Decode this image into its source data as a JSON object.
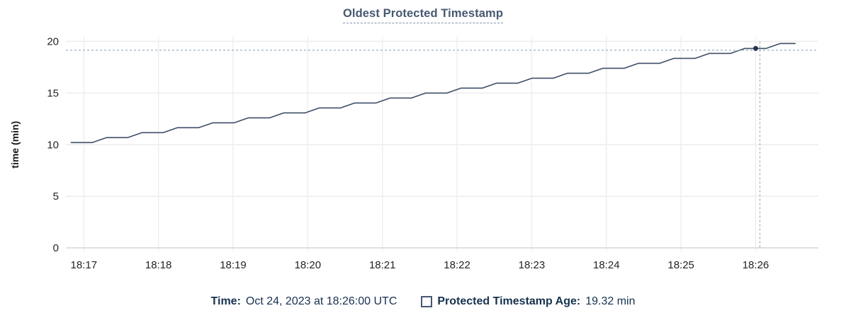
{
  "title": "Oldest Protected Timestamp",
  "colors": {
    "title": "#475872",
    "line": "#3e4e69",
    "dot": "#26344e",
    "crosshair": "#9db0c2",
    "grid": "#ededed",
    "axis": "#d6d6d6",
    "tick_label": "#242424",
    "legend_text": "#16324f"
  },
  "chart_data": {
    "type": "line",
    "line_style": "step-ramp",
    "title": "Oldest Protected Timestamp",
    "xlabel": "",
    "ylabel": "time (min)",
    "ylim": [
      0,
      20
    ],
    "y_ticks": [
      0,
      5,
      10,
      15,
      20
    ],
    "x_ticks": [
      {
        "offset_min": 0,
        "label": "18:17"
      },
      {
        "offset_min": 1,
        "label": "18:18"
      },
      {
        "offset_min": 2,
        "label": "18:19"
      },
      {
        "offset_min": 3,
        "label": "18:20"
      },
      {
        "offset_min": 4,
        "label": "18:21"
      },
      {
        "offset_min": 5,
        "label": "18:22"
      },
      {
        "offset_min": 6,
        "label": "18:23"
      },
      {
        "offset_min": 7,
        "label": "18:24"
      },
      {
        "offset_min": 8,
        "label": "18:25"
      },
      {
        "offset_min": 9,
        "label": "18:26"
      }
    ],
    "xlim_offset_min": [
      -0.24,
      9.84
    ],
    "grid": true,
    "legend_position": "bottom",
    "series": [
      {
        "name": "Protected Timestamp Age",
        "unit": "min",
        "points": [
          [
            -0.17,
            10.2
          ],
          [
            0.115,
            10.2
          ],
          [
            0.305,
            10.68
          ],
          [
            0.59,
            10.68
          ],
          [
            0.78,
            11.16
          ],
          [
            1.065,
            11.16
          ],
          [
            1.255,
            11.64
          ],
          [
            1.54,
            11.64
          ],
          [
            1.73,
            12.12
          ],
          [
            2.015,
            12.12
          ],
          [
            2.205,
            12.6
          ],
          [
            2.49,
            12.6
          ],
          [
            2.68,
            13.08
          ],
          [
            2.965,
            13.08
          ],
          [
            3.155,
            13.56
          ],
          [
            3.44,
            13.56
          ],
          [
            3.63,
            14.04
          ],
          [
            3.915,
            14.04
          ],
          [
            4.105,
            14.52
          ],
          [
            4.39,
            14.52
          ],
          [
            4.58,
            15.0
          ],
          [
            4.865,
            15.0
          ],
          [
            5.055,
            15.48
          ],
          [
            5.34,
            15.48
          ],
          [
            5.53,
            15.96
          ],
          [
            5.815,
            15.96
          ],
          [
            6.005,
            16.44
          ],
          [
            6.29,
            16.44
          ],
          [
            6.48,
            16.92
          ],
          [
            6.765,
            16.92
          ],
          [
            6.955,
            17.4
          ],
          [
            7.24,
            17.4
          ],
          [
            7.43,
            17.88
          ],
          [
            7.715,
            17.88
          ],
          [
            7.905,
            18.36
          ],
          [
            8.19,
            18.36
          ],
          [
            8.38,
            18.84
          ],
          [
            8.665,
            18.84
          ],
          [
            8.855,
            19.32
          ],
          [
            9.14,
            19.32
          ],
          [
            9.33,
            19.8
          ],
          [
            9.53,
            19.8
          ]
        ]
      }
    ],
    "crosshair": {
      "time_offset_min": 9.0,
      "time_label": "18:26:00",
      "value": 19.32
    }
  },
  "tooltip": {
    "time_label": "Time:",
    "time_value": "Oct 24, 2023 at 18:26:00 UTC",
    "series_label": "Protected Timestamp Age:",
    "series_value": "19.32 min"
  }
}
